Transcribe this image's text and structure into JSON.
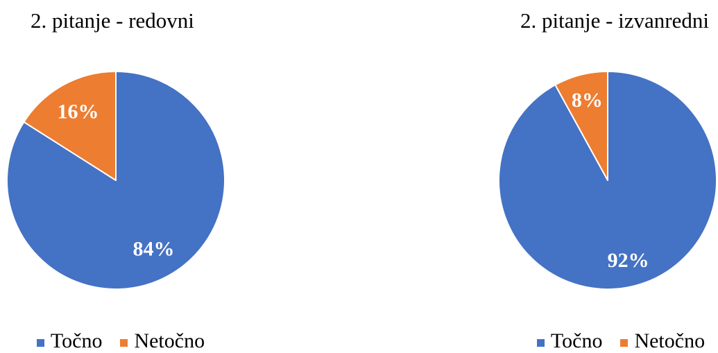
{
  "chart_data": [
    {
      "type": "pie",
      "title": "2. pitanje - redovni",
      "categories": [
        "Točno",
        "Netočno"
      ],
      "values": [
        84,
        16
      ],
      "data_labels": [
        "84%",
        "16%"
      ],
      "colors": [
        "#4472C4",
        "#ED7D31"
      ],
      "legend": "bottom"
    },
    {
      "type": "pie",
      "title": "2. pitanje - izvanredni",
      "categories": [
        "Točno",
        "Netočno"
      ],
      "values": [
        92,
        8
      ],
      "data_labels": [
        "92%",
        "8%"
      ],
      "colors": [
        "#4472C4",
        "#ED7D31"
      ],
      "legend": "bottom"
    }
  ]
}
